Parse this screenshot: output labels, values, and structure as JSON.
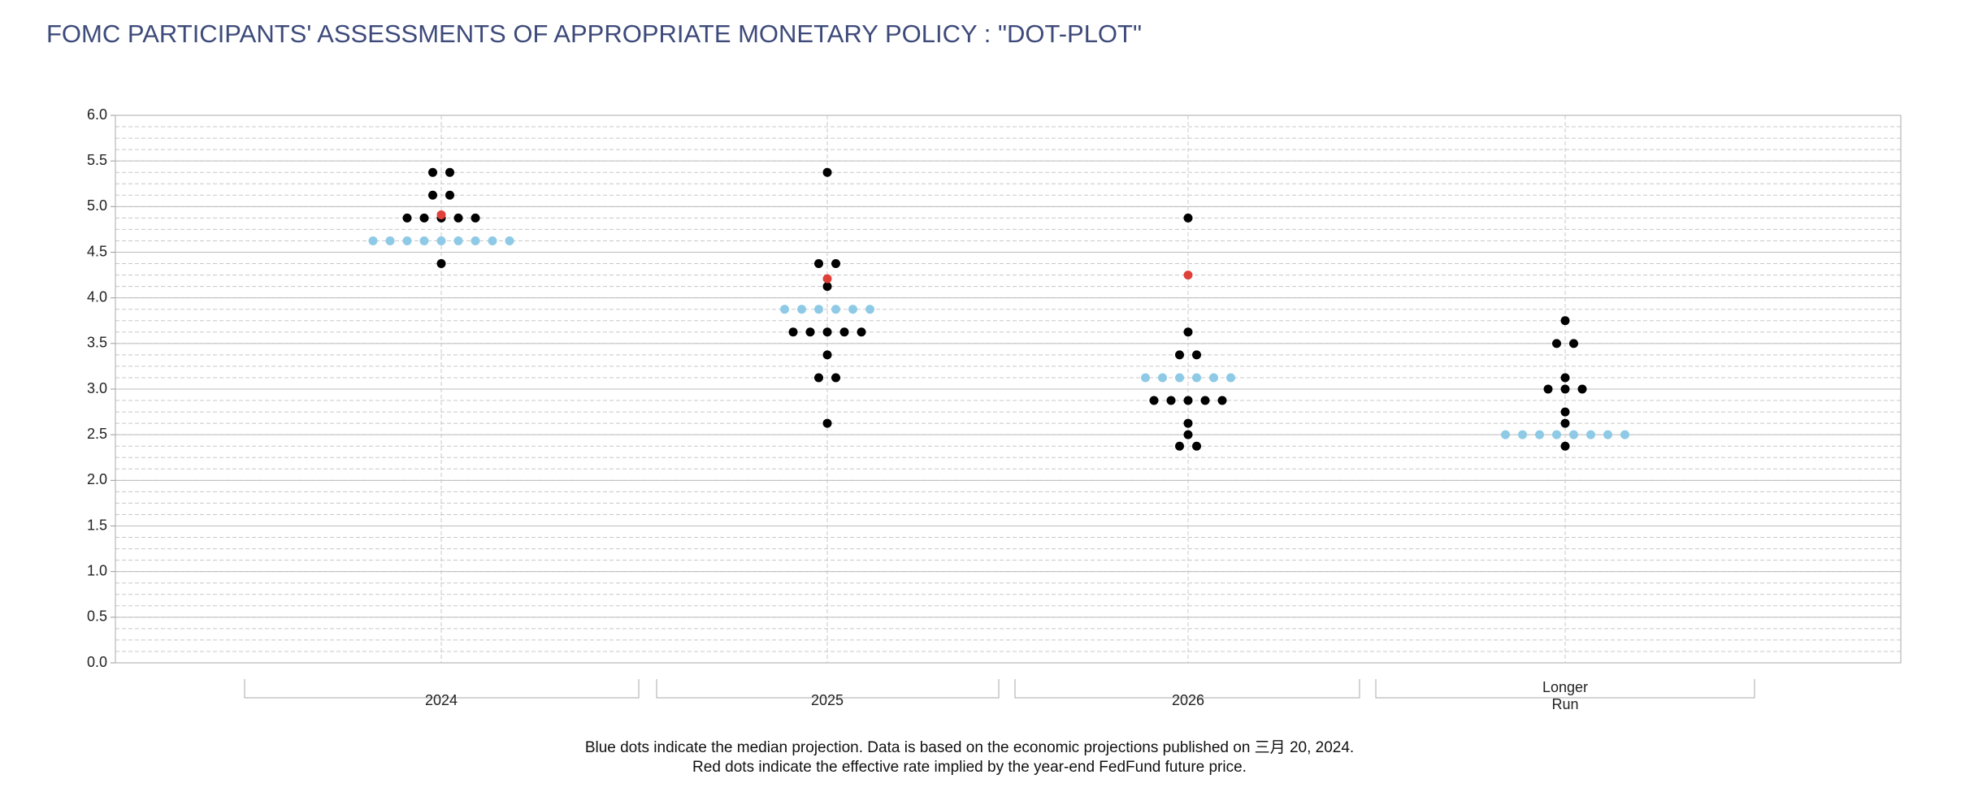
{
  "chart_data": {
    "type": "dotplot",
    "title": "FOMC PARTICIPANTS' ASSESSMENTS OF APPROPRIATE MONETARY POLICY : \"DOT-PLOT\"",
    "categories": [
      "2024",
      "2025",
      "2026",
      "Longer Run"
    ],
    "participants": {
      "color": "#000000",
      "groups": [
        {
          "levels": [
            5.375,
            5.125,
            4.875,
            4.375
          ],
          "counts": [
            2,
            2,
            5,
            1
          ]
        },
        {
          "levels": [
            5.375,
            4.375,
            4.125,
            3.625,
            3.375,
            3.125,
            2.625
          ],
          "counts": [
            1,
            2,
            1,
            5,
            1,
            2,
            1
          ]
        },
        {
          "levels": [
            4.875,
            3.625,
            3.375,
            2.875,
            2.625,
            2.5,
            2.375
          ],
          "counts": [
            1,
            1,
            2,
            5,
            1,
            1,
            2
          ]
        },
        {
          "levels": [
            3.75,
            3.5,
            3.125,
            3.0,
            2.75,
            2.625,
            2.375
          ],
          "counts": [
            1,
            2,
            1,
            3,
            1,
            1,
            1
          ]
        }
      ]
    },
    "median": {
      "color": "#8ecae6",
      "values": [
        4.625,
        3.875,
        3.125,
        2.5
      ],
      "counts": [
        9,
        6,
        6,
        8
      ]
    },
    "implied": {
      "color": "#e0403a",
      "values": [
        4.91,
        4.21,
        4.25,
        null
      ]
    },
    "ylim": [
      0,
      6
    ],
    "yticks": [
      {
        "value": 0,
        "label": "0.0"
      },
      {
        "value": 0.5,
        "label": "0.5"
      },
      {
        "value": 1,
        "label": "1.0"
      },
      {
        "value": 1.5,
        "label": "1.5"
      },
      {
        "value": 2,
        "label": "2.0"
      },
      {
        "value": 2.5,
        "label": "2.5"
      },
      {
        "value": 3,
        "label": "3.0"
      },
      {
        "value": 3.5,
        "label": "3.5"
      },
      {
        "value": 4,
        "label": "4.0"
      },
      {
        "value": 4.5,
        "label": "4.5"
      },
      {
        "value": 5,
        "label": "5.0"
      },
      {
        "value": 5.5,
        "label": "5.5"
      },
      {
        "value": 6,
        "label": "6.0"
      }
    ],
    "minor_grid_step": 0.125,
    "grid": true,
    "notes": [
      "Blue dots indicate the median projection. Data is based on the economic projections published on 三月 20, 2024.",
      "Red dots indicate the effective rate implied by the year-end FedFund future price."
    ]
  }
}
